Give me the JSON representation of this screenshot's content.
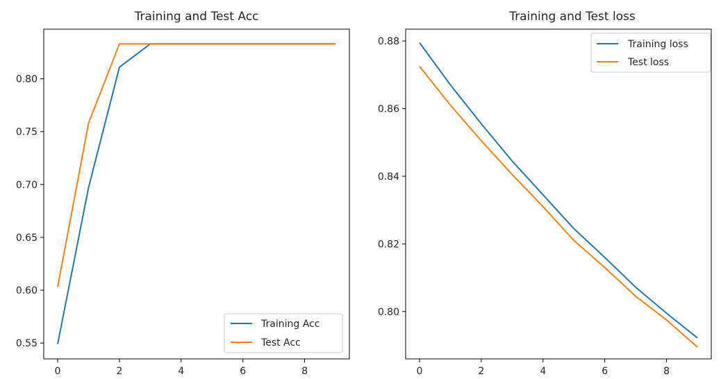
{
  "colors": {
    "series_blue": "#1f77b4",
    "series_orange": "#ff7f0e",
    "axis": "#000000",
    "legend_border": "#cccccc"
  },
  "chart_data": [
    {
      "type": "line",
      "title": "Training and Test Acc",
      "xlabel": "",
      "ylabel": "",
      "x": [
        0,
        1,
        2,
        3,
        4,
        5,
        6,
        7,
        8,
        9
      ],
      "xlim": [
        -0.45,
        9.45
      ],
      "ylim": [
        0.535,
        0.847
      ],
      "xticks": [
        0,
        2,
        4,
        6,
        8
      ],
      "xtick_labels": [
        "0",
        "2",
        "4",
        "6",
        "8"
      ],
      "yticks": [
        0.55,
        0.6,
        0.65,
        0.7,
        0.75,
        0.8
      ],
      "ytick_labels": [
        "0.55",
        "0.60",
        "0.65",
        "0.70",
        "0.75",
        "0.80"
      ],
      "legend_position": "lower-right",
      "grid": false,
      "series": [
        {
          "name": "Training Acc",
          "color": "#1f77b4",
          "values": [
            0.549,
            0.697,
            0.811,
            0.833,
            0.833,
            0.833,
            0.833,
            0.833,
            0.833,
            0.833
          ]
        },
        {
          "name": "Test Acc",
          "color": "#ff7f0e",
          "values": [
            0.603,
            0.758,
            0.833,
            0.833,
            0.833,
            0.833,
            0.833,
            0.833,
            0.833,
            0.833
          ]
        }
      ]
    },
    {
      "type": "line",
      "title": "Training and Test loss",
      "xlabel": "",
      "ylabel": "",
      "x": [
        0,
        1,
        2,
        3,
        4,
        5,
        6,
        7,
        8,
        9
      ],
      "xlim": [
        -0.45,
        9.45
      ],
      "ylim": [
        0.786,
        0.8835
      ],
      "xticks": [
        0,
        2,
        4,
        6,
        8
      ],
      "xtick_labels": [
        "0",
        "2",
        "4",
        "6",
        "8"
      ],
      "yticks": [
        0.8,
        0.82,
        0.84,
        0.86,
        0.88
      ],
      "ytick_labels": [
        "0.80",
        "0.82",
        "0.84",
        "0.86",
        "0.88"
      ],
      "legend_position": "upper-right",
      "grid": false,
      "series": [
        {
          "name": "Training loss",
          "color": "#1f77b4",
          "values": [
            0.8795,
            0.867,
            0.8555,
            0.8445,
            0.8345,
            0.8245,
            0.816,
            0.8072,
            0.7995,
            0.7922
          ]
        },
        {
          "name": "Test loss",
          "color": "#ff7f0e",
          "values": [
            0.8725,
            0.861,
            0.8505,
            0.8405,
            0.831,
            0.821,
            0.813,
            0.8045,
            0.7975,
            0.7895
          ]
        }
      ]
    }
  ]
}
